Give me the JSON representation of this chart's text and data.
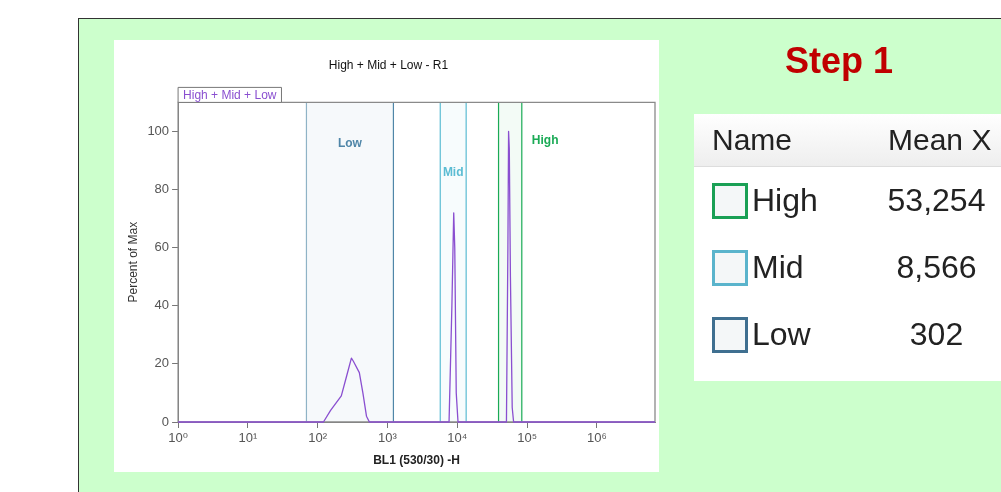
{
  "chart_data": [
    {
      "type": "line",
      "title": "High + Mid + Low - R1",
      "xlabel": "BL1 (530/30) -H",
      "ylabel": "Percent of Max",
      "log": "x",
      "xlim": [
        1,
        6800000
      ],
      "xticks": [
        {
          "value": 1,
          "label": "10⁰"
        },
        {
          "value": 10,
          "label": "10¹"
        },
        {
          "value": 100,
          "label": "10²"
        },
        {
          "value": 1000,
          "label": "10³"
        },
        {
          "value": 10000,
          "label": "10⁴"
        },
        {
          "value": 100000,
          "label": "10⁵"
        },
        {
          "value": 1000000,
          "label": "10⁶"
        }
      ],
      "ylim": [
        0,
        110
      ],
      "yticks": [
        0,
        20,
        40,
        60,
        80,
        100
      ],
      "grid": false,
      "legend": "top left",
      "marker": "none",
      "series": [
        {
          "name": "High + Mid + Low",
          "color": "#8a4fd0",
          "x": [
            1,
            121,
            153,
            218,
            261,
            304,
            323,
            395,
            444,
            500,
            550,
            7620,
            8370,
            8890,
            9200,
            9660,
            10240,
            50600,
            53100,
            54300,
            55600,
            57700,
            61200,
            64100,
            6800000
          ],
          "values": [
            0,
            0,
            4,
            9,
            16,
            22,
            21,
            17,
            10,
            2,
            0,
            0,
            40,
            72,
            60,
            10,
            0,
            0,
            60,
            100,
            94,
            50,
            5,
            0,
            0
          ]
        }
      ],
      "bands": [
        {
          "axis": "x",
          "from": 69,
          "to": 1216,
          "label": "Low",
          "color": "#4f86a8"
        },
        {
          "axis": "x",
          "from": 5700,
          "to": 13400,
          "label": "Mid",
          "color": "#5bbcd3"
        },
        {
          "axis": "x",
          "from": 39000,
          "to": 84000,
          "label": "High",
          "color": "#1aaa55"
        }
      ],
      "ref_lines": [
        {
          "axis": "x",
          "value": 69,
          "color": "#8fb3c6"
        },
        {
          "axis": "x",
          "value": 1216,
          "color": "#4f86a8"
        },
        {
          "axis": "x",
          "value": 5700,
          "color": "#5bbcd3"
        },
        {
          "axis": "x",
          "value": 13400,
          "color": "#5bbcd3"
        },
        {
          "axis": "x",
          "value": 39000,
          "color": "#1aaa55"
        },
        {
          "axis": "x",
          "value": 84000,
          "color": "#1aaa55"
        }
      ]
    },
    {
      "type": "other",
      "title": "Step 1",
      "annotations": [
        "Name",
        "Mean X"
      ],
      "categories": [
        "High",
        "Mid",
        "Low"
      ],
      "value_labels": [
        "53,254",
        "8,566",
        "302"
      ],
      "colors": [
        "#1aa055",
        "#5ab4cc",
        "#3f6f90"
      ]
    }
  ]
}
